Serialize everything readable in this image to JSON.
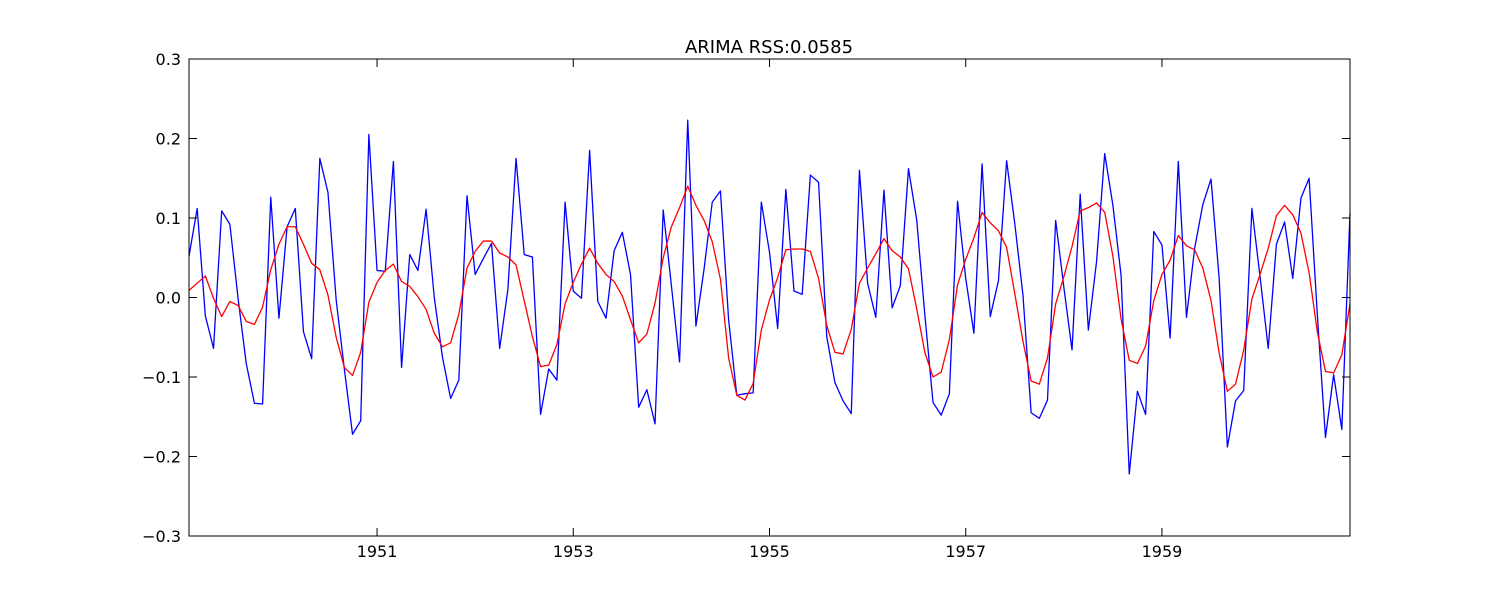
{
  "chart_data": {
    "type": "line",
    "title": "ARIMA RSS:0.0585",
    "xlabel": "",
    "ylabel": "",
    "x_start": "1949-02",
    "x_step": "1 month",
    "xlim": [
      "1949-02",
      "1960-12"
    ],
    "ylim": [
      -0.3,
      0.3
    ],
    "y_ticks": [
      0.3,
      0.2,
      0.1,
      0.0,
      -0.1,
      -0.2,
      -0.3
    ],
    "y_tick_labels": [
      "0.3",
      "0.2",
      "0.1",
      "0.0",
      "−0.1",
      "−0.2",
      "−0.3"
    ],
    "x_ticks": [
      "1951-01",
      "1953-01",
      "1955-01",
      "1957-01",
      "1959-01"
    ],
    "x_tick_labels": [
      "1951",
      "1953",
      "1955",
      "1957",
      "1959"
    ],
    "grid": false,
    "legend": "none",
    "series": [
      {
        "color": "#0000ff",
        "values": [
          0.052,
          0.112,
          -0.023,
          -0.064,
          0.109,
          0.092,
          -0.001,
          -0.083,
          -0.133,
          -0.134,
          0.126,
          -0.026,
          0.089,
          0.112,
          -0.043,
          -0.077,
          0.175,
          0.132,
          -0.003,
          -0.09,
          -0.172,
          -0.155,
          0.205,
          0.034,
          0.033,
          0.171,
          -0.088,
          0.054,
          0.034,
          0.111,
          0.0,
          -0.075,
          -0.127,
          -0.104,
          0.128,
          0.029,
          0.049,
          0.068,
          -0.064,
          0.01,
          0.175,
          0.054,
          0.051,
          -0.147,
          -0.09,
          -0.104,
          0.12,
          0.008,
          -0.001,
          0.185,
          -0.005,
          -0.026,
          0.059,
          0.082,
          0.029,
          -0.138,
          -0.116,
          -0.159,
          0.11,
          0.015,
          -0.081,
          0.223,
          -0.036,
          0.036,
          0.12,
          0.134,
          -0.028,
          -0.123,
          -0.121,
          -0.12,
          0.12,
          0.057,
          -0.039,
          0.136,
          0.008,
          0.004,
          0.154,
          0.145,
          -0.049,
          -0.107,
          -0.13,
          -0.146,
          0.16,
          0.018,
          -0.025,
          0.135,
          -0.013,
          0.015,
          0.162,
          0.098,
          -0.022,
          -0.132,
          -0.148,
          -0.121,
          0.121,
          0.024,
          -0.045,
          0.168,
          -0.024,
          0.021,
          0.172,
          0.093,
          0.003,
          -0.145,
          -0.152,
          -0.129,
          0.097,
          0.013,
          -0.066,
          0.13,
          -0.041,
          0.045,
          0.181,
          0.116,
          0.028,
          -0.222,
          -0.118,
          -0.147,
          0.083,
          0.066,
          -0.051,
          0.171,
          -0.025,
          0.062,
          0.117,
          0.149,
          0.024,
          -0.188,
          -0.13,
          -0.117,
          0.112,
          0.026,
          -0.064,
          0.067,
          0.095,
          0.024,
          0.125,
          0.15,
          -0.021,
          -0.176,
          -0.097,
          -0.166,
          0.106
        ]
      },
      {
        "color": "#ff0000",
        "values": [
          0.009,
          0.018,
          0.027,
          -0.001,
          -0.024,
          -0.005,
          -0.01,
          -0.03,
          -0.034,
          -0.012,
          0.035,
          0.067,
          0.089,
          0.089,
          0.067,
          0.043,
          0.035,
          0.003,
          -0.05,
          -0.088,
          -0.098,
          -0.069,
          -0.006,
          0.019,
          0.034,
          0.042,
          0.02,
          0.014,
          0.001,
          -0.015,
          -0.045,
          -0.062,
          -0.057,
          -0.021,
          0.037,
          0.058,
          0.071,
          0.071,
          0.056,
          0.051,
          0.041,
          -0.004,
          -0.049,
          -0.087,
          -0.085,
          -0.059,
          -0.008,
          0.019,
          0.042,
          0.062,
          0.043,
          0.029,
          0.02,
          0.002,
          -0.028,
          -0.057,
          -0.046,
          -0.007,
          0.05,
          0.089,
          0.113,
          0.14,
          0.116,
          0.097,
          0.07,
          0.023,
          -0.076,
          -0.123,
          -0.129,
          -0.108,
          -0.041,
          -0.003,
          0.025,
          0.06,
          0.061,
          0.061,
          0.058,
          0.024,
          -0.035,
          -0.069,
          -0.071,
          -0.04,
          0.018,
          0.037,
          0.055,
          0.074,
          0.059,
          0.051,
          0.036,
          -0.014,
          -0.069,
          -0.1,
          -0.094,
          -0.053,
          0.016,
          0.048,
          0.075,
          0.107,
          0.094,
          0.084,
          0.063,
          0.005,
          -0.055,
          -0.105,
          -0.109,
          -0.076,
          -0.008,
          0.026,
          0.064,
          0.109,
          0.113,
          0.119,
          0.107,
          0.052,
          -0.027,
          -0.079,
          -0.083,
          -0.061,
          -0.004,
          0.029,
          0.047,
          0.078,
          0.065,
          0.06,
          0.037,
          -0.004,
          -0.07,
          -0.118,
          -0.109,
          -0.066,
          -0.002,
          0.029,
          0.062,
          0.103,
          0.116,
          0.104,
          0.081,
          0.031,
          -0.043,
          -0.093,
          -0.095,
          -0.072,
          -0.008
        ]
      }
    ]
  }
}
